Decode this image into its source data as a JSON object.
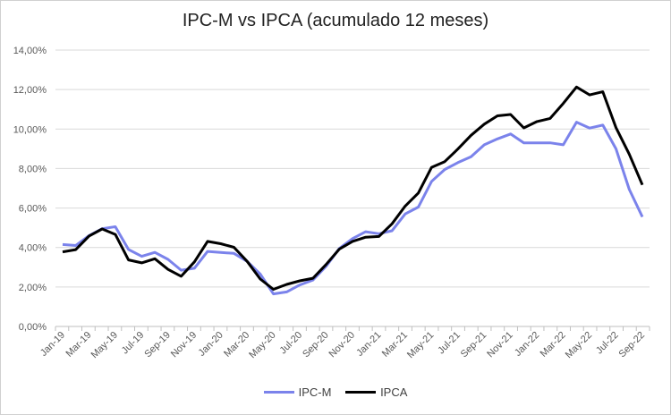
{
  "chart_data": {
    "type": "line",
    "title": "IPC-M vs IPCA (acumulado 12 meses)",
    "xlabel": "",
    "ylabel": "",
    "ylim": [
      0,
      14
    ],
    "yticks": [
      "0,00%",
      "2,00%",
      "4,00%",
      "6,00%",
      "8,00%",
      "10,00%",
      "12,00%",
      "14,00%"
    ],
    "grid": true,
    "legend": "bottom",
    "x": [
      "Jan-19",
      "Feb-19",
      "Mar-19",
      "Apr-19",
      "May-19",
      "Jun-19",
      "Jul-19",
      "Aug-19",
      "Sep-19",
      "Oct-19",
      "Nov-19",
      "Dec-19",
      "Jan-20",
      "Feb-20",
      "Mar-20",
      "Apr-20",
      "May-20",
      "Jun-20",
      "Jul-20",
      "Aug-20",
      "Sep-20",
      "Oct-20",
      "Nov-20",
      "Dec-20",
      "Jan-21",
      "Feb-21",
      "Mar-21",
      "Apr-21",
      "May-21",
      "Jun-21",
      "Jul-21",
      "Aug-21",
      "Sep-21",
      "Oct-21",
      "Nov-21",
      "Dec-21",
      "Jan-22",
      "Feb-22",
      "Mar-22",
      "Apr-22",
      "May-22",
      "Jun-22",
      "Jul-22",
      "Aug-22",
      "Sep-22"
    ],
    "xtick_labels": [
      "Jan-19",
      "Mar-19",
      "May-19",
      "Jul-19",
      "Sep-19",
      "Nov-19",
      "Jan-20",
      "Mar-20",
      "May-20",
      "Jul-20",
      "Sep-20",
      "Nov-20",
      "Jan-21",
      "Mar-21",
      "May-21",
      "Jul-21",
      "Sep-21",
      "Nov-21",
      "Jan-22",
      "Mar-22",
      "May-22",
      "Jul-22",
      "Sep-22"
    ],
    "series": [
      {
        "name": "IPC-M",
        "color": "#7b83eb",
        "values": [
          4.15,
          4.1,
          4.6,
          4.95,
          5.05,
          3.9,
          3.55,
          3.75,
          3.4,
          2.85,
          2.95,
          3.8,
          3.75,
          3.7,
          3.3,
          2.65,
          1.65,
          1.75,
          2.1,
          2.35,
          3.05,
          3.95,
          4.45,
          4.8,
          4.7,
          4.85,
          5.7,
          6.05,
          7.35,
          7.95,
          8.3,
          8.6,
          9.2,
          9.5,
          9.75,
          9.3,
          9.3,
          9.3,
          9.2,
          10.35,
          10.05,
          10.2,
          9.0,
          6.95,
          5.55
        ]
      },
      {
        "name": "IPCA",
        "color": "#000000",
        "values": [
          3.78,
          3.89,
          4.58,
          4.94,
          4.66,
          3.37,
          3.22,
          3.43,
          2.89,
          2.54,
          3.27,
          4.31,
          4.19,
          4.01,
          3.3,
          2.4,
          1.88,
          2.13,
          2.31,
          2.44,
          3.14,
          3.92,
          4.31,
          4.52,
          4.56,
          5.2,
          6.1,
          6.76,
          8.06,
          8.35,
          8.99,
          9.68,
          10.25,
          10.67,
          10.74,
          10.06,
          10.38,
          10.54,
          11.3,
          12.13,
          11.73,
          11.89,
          10.07,
          8.73,
          7.17
        ]
      }
    ]
  }
}
